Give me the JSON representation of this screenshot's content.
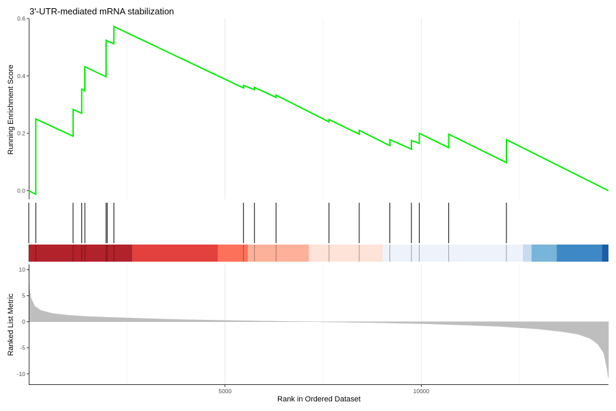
{
  "chart_data": {
    "type": "line",
    "title": "3'-UTR-mediated mRNA stabilization",
    "xlabel": "Rank in Ordered Dataset",
    "xlim": [
      0,
      14770
    ],
    "x_ticks": [
      5000,
      10000
    ],
    "grid": true,
    "top_panel": {
      "ylabel": "Running Enrichment Score",
      "ylim": [
        -0.03,
        0.6
      ],
      "y_ticks": [
        0.0,
        0.2,
        0.4,
        0.6
      ],
      "line_color": "#00ee00",
      "series": [
        {
          "x": [
            0,
            180,
            180,
            1130,
            1130,
            1350,
            1350,
            1430,
            1430,
            1970,
            1970,
            2170,
            2170,
            5470,
            5470,
            5750,
            5750,
            6300,
            6300,
            7650,
            7650,
            8420,
            8420,
            9200,
            9200,
            9750,
            9750,
            9950,
            9950,
            10700,
            10700,
            12170,
            12170,
            14770
          ],
          "y": [
            0.0,
            -0.012,
            0.25,
            0.19,
            0.283,
            0.27,
            0.354,
            0.348,
            0.432,
            0.397,
            0.524,
            0.512,
            0.572,
            0.358,
            0.367,
            0.352,
            0.36,
            0.325,
            0.333,
            0.24,
            0.248,
            0.197,
            0.21,
            0.157,
            0.178,
            0.145,
            0.175,
            0.165,
            0.2,
            0.15,
            0.197,
            0.098,
            0.178,
            0.0
          ]
        }
      ]
    },
    "hit_positions": [
      0,
      180,
      1130,
      1350,
      1430,
      1970,
      2000,
      2170,
      5470,
      5750,
      6300,
      7650,
      8420,
      9200,
      9750,
      9950,
      10700,
      12170
    ],
    "color_bands": [
      {
        "start": 0,
        "end": 2640,
        "color": "#b2222a"
      },
      {
        "start": 2640,
        "end": 4820,
        "color": "#e3413e"
      },
      {
        "start": 4820,
        "end": 5580,
        "color": "#fc7159"
      },
      {
        "start": 5580,
        "end": 7140,
        "color": "#fdb19a"
      },
      {
        "start": 7140,
        "end": 9020,
        "color": "#fee3d8"
      },
      {
        "start": 9020,
        "end": 12590,
        "color": "#eef3fb"
      },
      {
        "start": 12590,
        "end": 12810,
        "color": "#c7dbef"
      },
      {
        "start": 12810,
        "end": 13450,
        "color": "#79b4d9"
      },
      {
        "start": 13450,
        "end": 14600,
        "color": "#3f88c6"
      },
      {
        "start": 14600,
        "end": 14770,
        "color": "#1a5fa6"
      }
    ],
    "bottom_panel": {
      "ylabel": "Ranked List Metric",
      "ylim": [
        -12,
        11
      ],
      "y_ticks": [
        10,
        5,
        0,
        -5,
        -10
      ],
      "fill_color": "#bebebe",
      "metric_curve": {
        "x": [
          0,
          20,
          60,
          150,
          300,
          600,
          1000,
          1500,
          2000,
          3000,
          4000,
          5000,
          6000,
          7000,
          8000,
          9000,
          10000,
          11000,
          12000,
          13000,
          13600,
          14000,
          14300,
          14500,
          14650,
          14720,
          14770
        ],
        "y": [
          11,
          6.2,
          4.5,
          3.0,
          2.2,
          1.6,
          1.25,
          1.0,
          0.85,
          0.6,
          0.4,
          0.25,
          0.12,
          0.02,
          -0.08,
          -0.2,
          -0.35,
          -0.6,
          -0.9,
          -1.4,
          -1.9,
          -2.4,
          -3.2,
          -4.3,
          -6.0,
          -8.5,
          -10.8
        ]
      }
    }
  }
}
